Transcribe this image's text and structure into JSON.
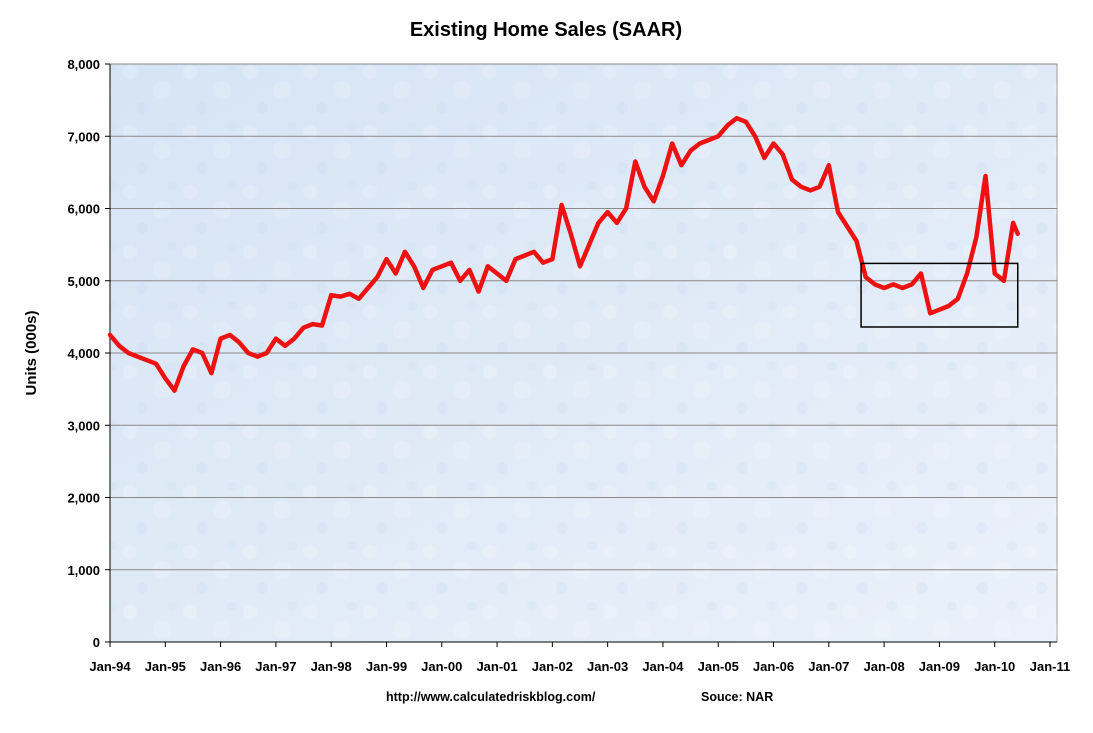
{
  "chart_data": {
    "type": "line",
    "title": "Existing Home Sales (SAAR)",
    "ylabel": "Units (000s)",
    "xlabel": "",
    "ylim": [
      0,
      8000
    ],
    "y_ticks": [
      "0",
      "1,000",
      "2,000",
      "3,000",
      "4,000",
      "5,000",
      "6,000",
      "7,000",
      "8,000"
    ],
    "x_ticks": [
      "Jan-94",
      "Jan-95",
      "Jan-96",
      "Jan-97",
      "Jan-98",
      "Jan-99",
      "Jan-00",
      "Jan-01",
      "Jan-02",
      "Jan-03",
      "Jan-04",
      "Jan-05",
      "Jan-06",
      "Jan-07",
      "Jan-08",
      "Jan-09",
      "Jan-10",
      "Jan-11"
    ],
    "grid": true,
    "legend": "none",
    "series_color": "#ee1111",
    "highlight_box": {
      "x_range": [
        "Aug-07",
        "Jun-10"
      ],
      "y_range": [
        4360,
        5240
      ]
    },
    "series": [
      {
        "x": [
          "Jan-94",
          "Mar-94",
          "May-94",
          "Jul-94",
          "Sep-94",
          "Nov-94",
          "Jan-95",
          "Mar-95",
          "May-95",
          "Jul-95",
          "Sep-95",
          "Nov-95",
          "Jan-96",
          "Mar-96",
          "May-96",
          "Jul-96",
          "Sep-96",
          "Nov-96",
          "Jan-97",
          "Mar-97",
          "May-97",
          "Jul-97",
          "Sep-97",
          "Nov-97",
          "Jan-98",
          "Mar-98",
          "May-98",
          "Jul-98",
          "Sep-98",
          "Nov-98",
          "Jan-99",
          "Mar-99",
          "May-99",
          "Jul-99",
          "Sep-99",
          "Nov-99",
          "Jan-00",
          "Mar-00",
          "May-00",
          "Jul-00",
          "Sep-00",
          "Nov-00",
          "Jan-01",
          "Mar-01",
          "May-01",
          "Jul-01",
          "Sep-01",
          "Nov-01",
          "Jan-02",
          "Mar-02",
          "May-02",
          "Jul-02",
          "Sep-02",
          "Nov-02",
          "Jan-03",
          "Mar-03",
          "May-03",
          "Jul-03",
          "Sep-03",
          "Nov-03",
          "Jan-04",
          "Mar-04",
          "May-04",
          "Jul-04",
          "Sep-04",
          "Nov-04",
          "Jan-05",
          "Mar-05",
          "May-05",
          "Jul-05",
          "Sep-05",
          "Nov-05",
          "Jan-06",
          "Mar-06",
          "May-06",
          "Jul-06",
          "Sep-06",
          "Nov-06",
          "Jan-07",
          "Mar-07",
          "May-07",
          "Jul-07",
          "Sep-07",
          "Nov-07",
          "Jan-08",
          "Mar-08",
          "May-08",
          "Jul-08",
          "Sep-08",
          "Nov-08",
          "Jan-09",
          "Mar-09",
          "May-09",
          "Jul-09",
          "Sep-09",
          "Nov-09",
          "Jan-10",
          "Mar-10",
          "May-10",
          "Jun-10"
        ],
        "values": [
          4250,
          4100,
          4000,
          3950,
          3900,
          3850,
          3650,
          3480,
          3820,
          4050,
          4000,
          3720,
          4200,
          4250,
          4150,
          4000,
          3950,
          4000,
          4200,
          4100,
          4200,
          4350,
          4400,
          4380,
          4800,
          4780,
          4820,
          4750,
          4900,
          5050,
          5300,
          5100,
          5400,
          5200,
          4900,
          5150,
          5200,
          5250,
          5000,
          5150,
          4850,
          5200,
          5100,
          5000,
          5300,
          5350,
          5400,
          5250,
          5300,
          6050,
          5650,
          5200,
          5500,
          5800,
          5950,
          5800,
          6000,
          6650,
          6300,
          6100,
          6450,
          6900,
          6600,
          6800,
          6900,
          6950,
          7000,
          7150,
          7250,
          7200,
          7000,
          6700,
          6900,
          6750,
          6400,
          6300,
          6250,
          6300,
          6600,
          5950,
          5750,
          5550,
          5050,
          4950,
          4900,
          4950,
          4900,
          4950,
          5100,
          4550,
          4600,
          4650,
          4750,
          5100,
          5600,
          6450,
          5100,
          5000,
          5800,
          5650
        ]
      }
    ]
  },
  "footer": {
    "url": "http://www.calculatedriskblog.com/",
    "source": "Souce: NAR"
  }
}
